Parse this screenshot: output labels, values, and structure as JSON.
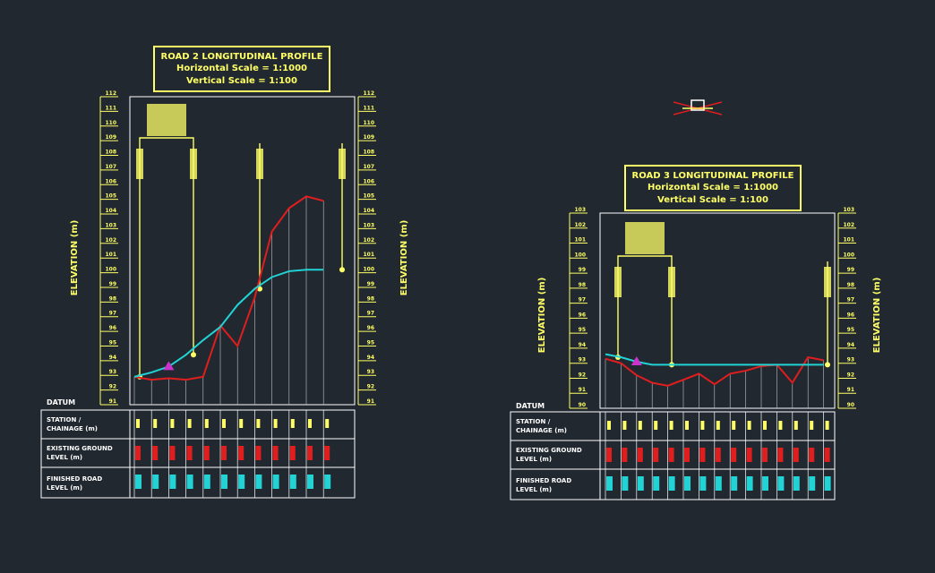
{
  "datum_label": "DATUM",
  "row_labels": {
    "station_1": "STATION /",
    "station_2": "CHAINAGE (m)",
    "existing_1": "EXISTING GROUND",
    "existing_2": "LEVEL (m)",
    "finished_1": "FINISHED ROAD",
    "finished_2": "LEVEL (m)"
  },
  "colors": {
    "background": "#212830",
    "annotation": "#ffff66",
    "ground": "#e01e1e",
    "design": "#22d3d6",
    "marker": "#cc33cc",
    "grid": "#ffffff"
  },
  "profiles": [
    {
      "id": "road2",
      "title": "ROAD 2 LONGITUDINAL PROFILE",
      "h_scale": "Horizontal Scale = 1:1000",
      "v_scale": "Vertical Scale = 1:100",
      "elevation_label": "ELEVATION (m)",
      "axis_ticks": [
        "112",
        "111",
        "110",
        "109",
        "108",
        "107",
        "106",
        "105",
        "104",
        "103",
        "102",
        "101",
        "100",
        "99",
        "98",
        "97",
        "96",
        "95",
        "94",
        "93",
        "92",
        "91"
      ],
      "y_range": [
        91,
        112
      ],
      "ground_profile": [
        [
          0,
          92.9
        ],
        [
          1,
          92.7
        ],
        [
          2,
          92.8
        ],
        [
          3,
          92.7
        ],
        [
          4,
          92.9
        ],
        [
          5,
          96.4
        ],
        [
          6,
          95
        ],
        [
          7,
          98.3
        ],
        [
          8,
          102.8
        ],
        [
          9,
          104.4
        ],
        [
          10,
          105.2
        ],
        [
          11,
          104.9
        ]
      ],
      "design_profile": [
        [
          0,
          92.9
        ],
        [
          1,
          93.2
        ],
        [
          2,
          93.6
        ],
        [
          3,
          94.4
        ],
        [
          4,
          95.4
        ],
        [
          5,
          96.3
        ],
        [
          6,
          97.8
        ],
        [
          7,
          98.9
        ],
        [
          8,
          99.7
        ],
        [
          9,
          100.1
        ],
        [
          10,
          100.2
        ],
        [
          11,
          100.2
        ]
      ]
    },
    {
      "id": "road3",
      "title": "ROAD 3 LONGITUDINAL PROFILE",
      "h_scale": "Horizontal Scale = 1:1000",
      "v_scale": "Vertical Scale = 1:100",
      "elevation_label": "ELEVATION (m)",
      "axis_ticks": [
        "103",
        "102",
        "101",
        "100",
        "99",
        "98",
        "97",
        "96",
        "95",
        "94",
        "93",
        "92",
        "91",
        "90"
      ],
      "y_range": [
        90,
        103
      ],
      "ground_profile": [
        [
          0,
          93.3
        ],
        [
          1,
          93
        ],
        [
          2,
          92.2
        ],
        [
          3,
          91.7
        ],
        [
          4,
          91.5
        ],
        [
          5,
          91.9
        ],
        [
          6,
          92.3
        ],
        [
          7,
          91.6
        ],
        [
          8,
          92.3
        ],
        [
          9,
          92.5
        ],
        [
          10,
          92.8
        ],
        [
          11,
          92.9
        ],
        [
          12,
          91.7
        ],
        [
          13,
          93.4
        ],
        [
          14,
          93.2
        ]
      ],
      "design_profile": [
        [
          0,
          93.6
        ],
        [
          1,
          93.4
        ],
        [
          2,
          93.1
        ],
        [
          3,
          92.9
        ],
        [
          4,
          92.9
        ],
        [
          5,
          92.9
        ],
        [
          6,
          92.9
        ],
        [
          7,
          92.9
        ],
        [
          8,
          92.9
        ],
        [
          9,
          92.9
        ],
        [
          10,
          92.9
        ],
        [
          11,
          92.9
        ],
        [
          12,
          92.9
        ],
        [
          13,
          92.9
        ],
        [
          14,
          92.9
        ]
      ]
    }
  ]
}
